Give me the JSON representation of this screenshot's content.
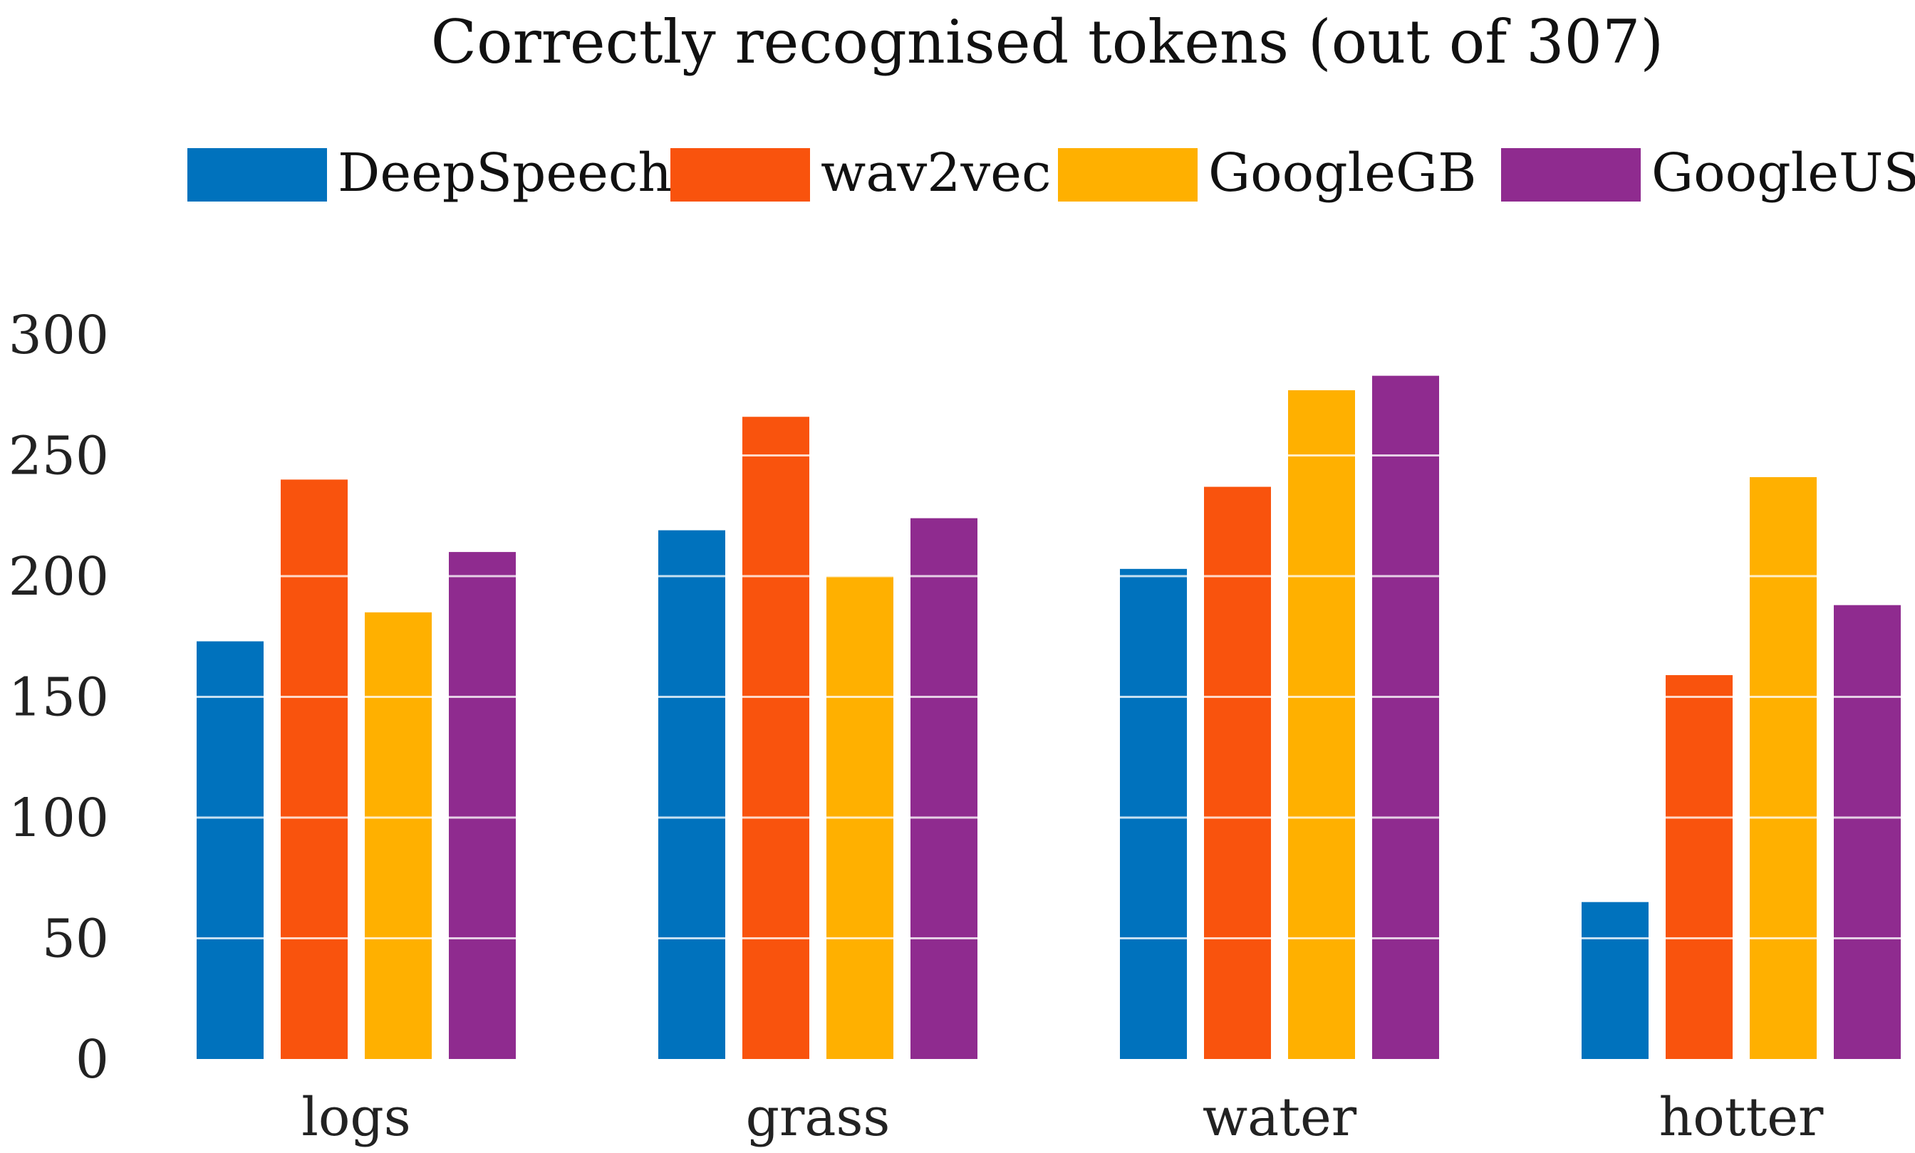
{
  "chart_data": {
    "type": "bar",
    "title": "Correctly recognised tokens (out of 307)",
    "categories": [
      "logs",
      "grass",
      "water",
      "hotter"
    ],
    "series": [
      {
        "name": "DeepSpeech",
        "color": "#0072BD",
        "values": [
          173,
          219,
          203,
          65
        ]
      },
      {
        "name": "wav2vec",
        "color": "#F9530D",
        "values": [
          240,
          266,
          237,
          159
        ]
      },
      {
        "name": "GoogleGB",
        "color": "#FFB000",
        "values": [
          185,
          200,
          277,
          241
        ]
      },
      {
        "name": "GoogleUS",
        "color": "#8F2B8F",
        "values": [
          210,
          224,
          283,
          188
        ]
      }
    ],
    "yticks": [
      "0",
      "50",
      "100",
      "150",
      "200",
      "250",
      "300"
    ],
    "ylim": [
      0,
      300
    ],
    "xlabel": "",
    "ylabel": "",
    "grid": true,
    "legend_placement": "top"
  }
}
